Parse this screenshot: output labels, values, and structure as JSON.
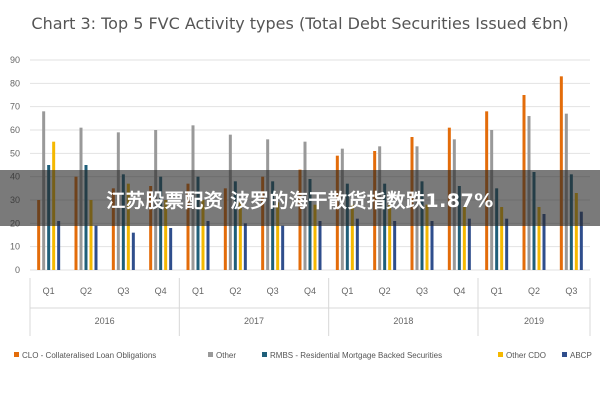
{
  "chart_data": {
    "type": "bar",
    "title": "Chart 3: Top 5 FVC Activity types (Total Debt Securities Issued €bn)",
    "categories": [
      "Q1",
      "Q2",
      "Q3",
      "Q4",
      "Q1",
      "Q2",
      "Q3",
      "Q4",
      "Q1",
      "Q2",
      "Q3",
      "Q4",
      "Q1",
      "Q2",
      "Q3"
    ],
    "groups": [
      {
        "label": "2016",
        "count": 4
      },
      {
        "label": "2017",
        "count": 4
      },
      {
        "label": "2018",
        "count": 4
      },
      {
        "label": "2019",
        "count": 3
      }
    ],
    "ylim": [
      0,
      90
    ],
    "yticks": [
      0,
      10,
      20,
      30,
      40,
      50,
      60,
      70,
      80,
      90
    ],
    "grid": true,
    "legend_position": "bottom",
    "series": [
      {
        "name": "CLO - Collateralised Loan Obligations",
        "color": "#e36c0a",
        "values": [
          30,
          40,
          35,
          36,
          37,
          35,
          40,
          43,
          49,
          51,
          57,
          61,
          68,
          75,
          83
        ]
      },
      {
        "name": "Other",
        "color": "#999999",
        "values": [
          68,
          61,
          59,
          60,
          62,
          58,
          56,
          55,
          52,
          53,
          53,
          56,
          60,
          66,
          67
        ]
      },
      {
        "name": "RMBS - Residential Mortgage Backed Securities",
        "color": "#1f5f7a",
        "values": [
          45,
          45,
          41,
          40,
          40,
          38,
          38,
          39,
          37,
          37,
          38,
          36,
          35,
          42,
          41
        ]
      },
      {
        "name": "Other CDO",
        "color": "#f5b800",
        "values": [
          55,
          30,
          37,
          30,
          30,
          29,
          29,
          28,
          28,
          28,
          28,
          27,
          27,
          27,
          33
        ]
      },
      {
        "name": "ABCP",
        "color": "#2f4e8c",
        "values": [
          21,
          19,
          16,
          18,
          21,
          20,
          19,
          21,
          22,
          21,
          21,
          22,
          22,
          24,
          25
        ]
      }
    ]
  },
  "overlay": {
    "caption": "江苏股票配资 波罗的海干散货指数跌1.87%"
  }
}
